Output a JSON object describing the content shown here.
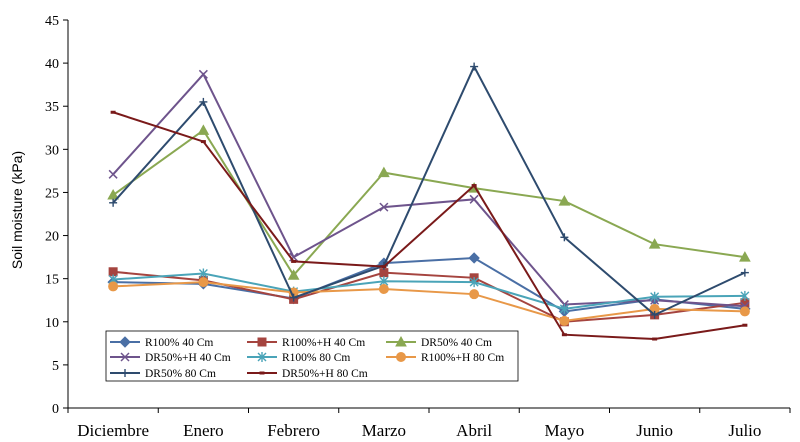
{
  "chart_data": {
    "type": "line",
    "title": "",
    "xlabel": "",
    "ylabel": "Soil moisture  (kPa)",
    "ylim": [
      0,
      45
    ],
    "yticks": [
      0,
      5,
      10,
      15,
      20,
      25,
      30,
      35,
      40,
      45
    ],
    "grid": false,
    "legend_position": "bottom-left",
    "categories": [
      "Diciembre",
      "Enero",
      "Febrero",
      "Marzo",
      "Abril",
      "Mayo",
      "Junio",
      "Julio"
    ],
    "series": [
      {
        "name": "R100% 40 Cm",
        "color": "#4a6fa5",
        "marker": "diamond",
        "values": [
          14.6,
          14.4,
          12.7,
          16.8,
          17.4,
          11.2,
          12.6,
          11.5
        ]
      },
      {
        "name": "R100%+H 40 Cm",
        "color": "#a5443f",
        "marker": "square",
        "values": [
          15.8,
          14.8,
          12.6,
          15.7,
          15.1,
          10.0,
          10.8,
          12.2
        ]
      },
      {
        "name": "DR50% 40 Cm",
        "color": "#8aa852",
        "marker": "triangle",
        "values": [
          24.7,
          32.2,
          15.4,
          27.3,
          25.5,
          24.0,
          19.0,
          17.5
        ]
      },
      {
        "name": "DR50%+H 40 Cm",
        "color": "#6e548c",
        "marker": "x",
        "values": [
          27.1,
          38.7,
          17.5,
          23.3,
          24.2,
          12.0,
          12.5,
          11.8
        ]
      },
      {
        "name": "R100% 80 Cm",
        "color": "#4aa4b8",
        "marker": "star",
        "values": [
          14.9,
          15.6,
          13.5,
          14.7,
          14.6,
          11.5,
          12.9,
          13.0
        ]
      },
      {
        "name": "R100%+H 80 Cm",
        "color": "#e89848",
        "marker": "circle",
        "values": [
          14.1,
          14.6,
          13.4,
          13.8,
          13.2,
          10.1,
          11.5,
          11.2
        ]
      },
      {
        "name": "DR50% 80 Cm",
        "color": "#2e4b6e",
        "marker": "plus",
        "values": [
          23.8,
          35.5,
          12.8,
          16.5,
          39.6,
          19.8,
          10.8,
          15.7
        ]
      },
      {
        "name": "DR50%+H 80 Cm",
        "color": "#7a1a1a",
        "marker": "dash",
        "values": [
          34.3,
          30.9,
          17.0,
          16.4,
          25.8,
          8.5,
          8.0,
          9.6
        ]
      }
    ]
  }
}
